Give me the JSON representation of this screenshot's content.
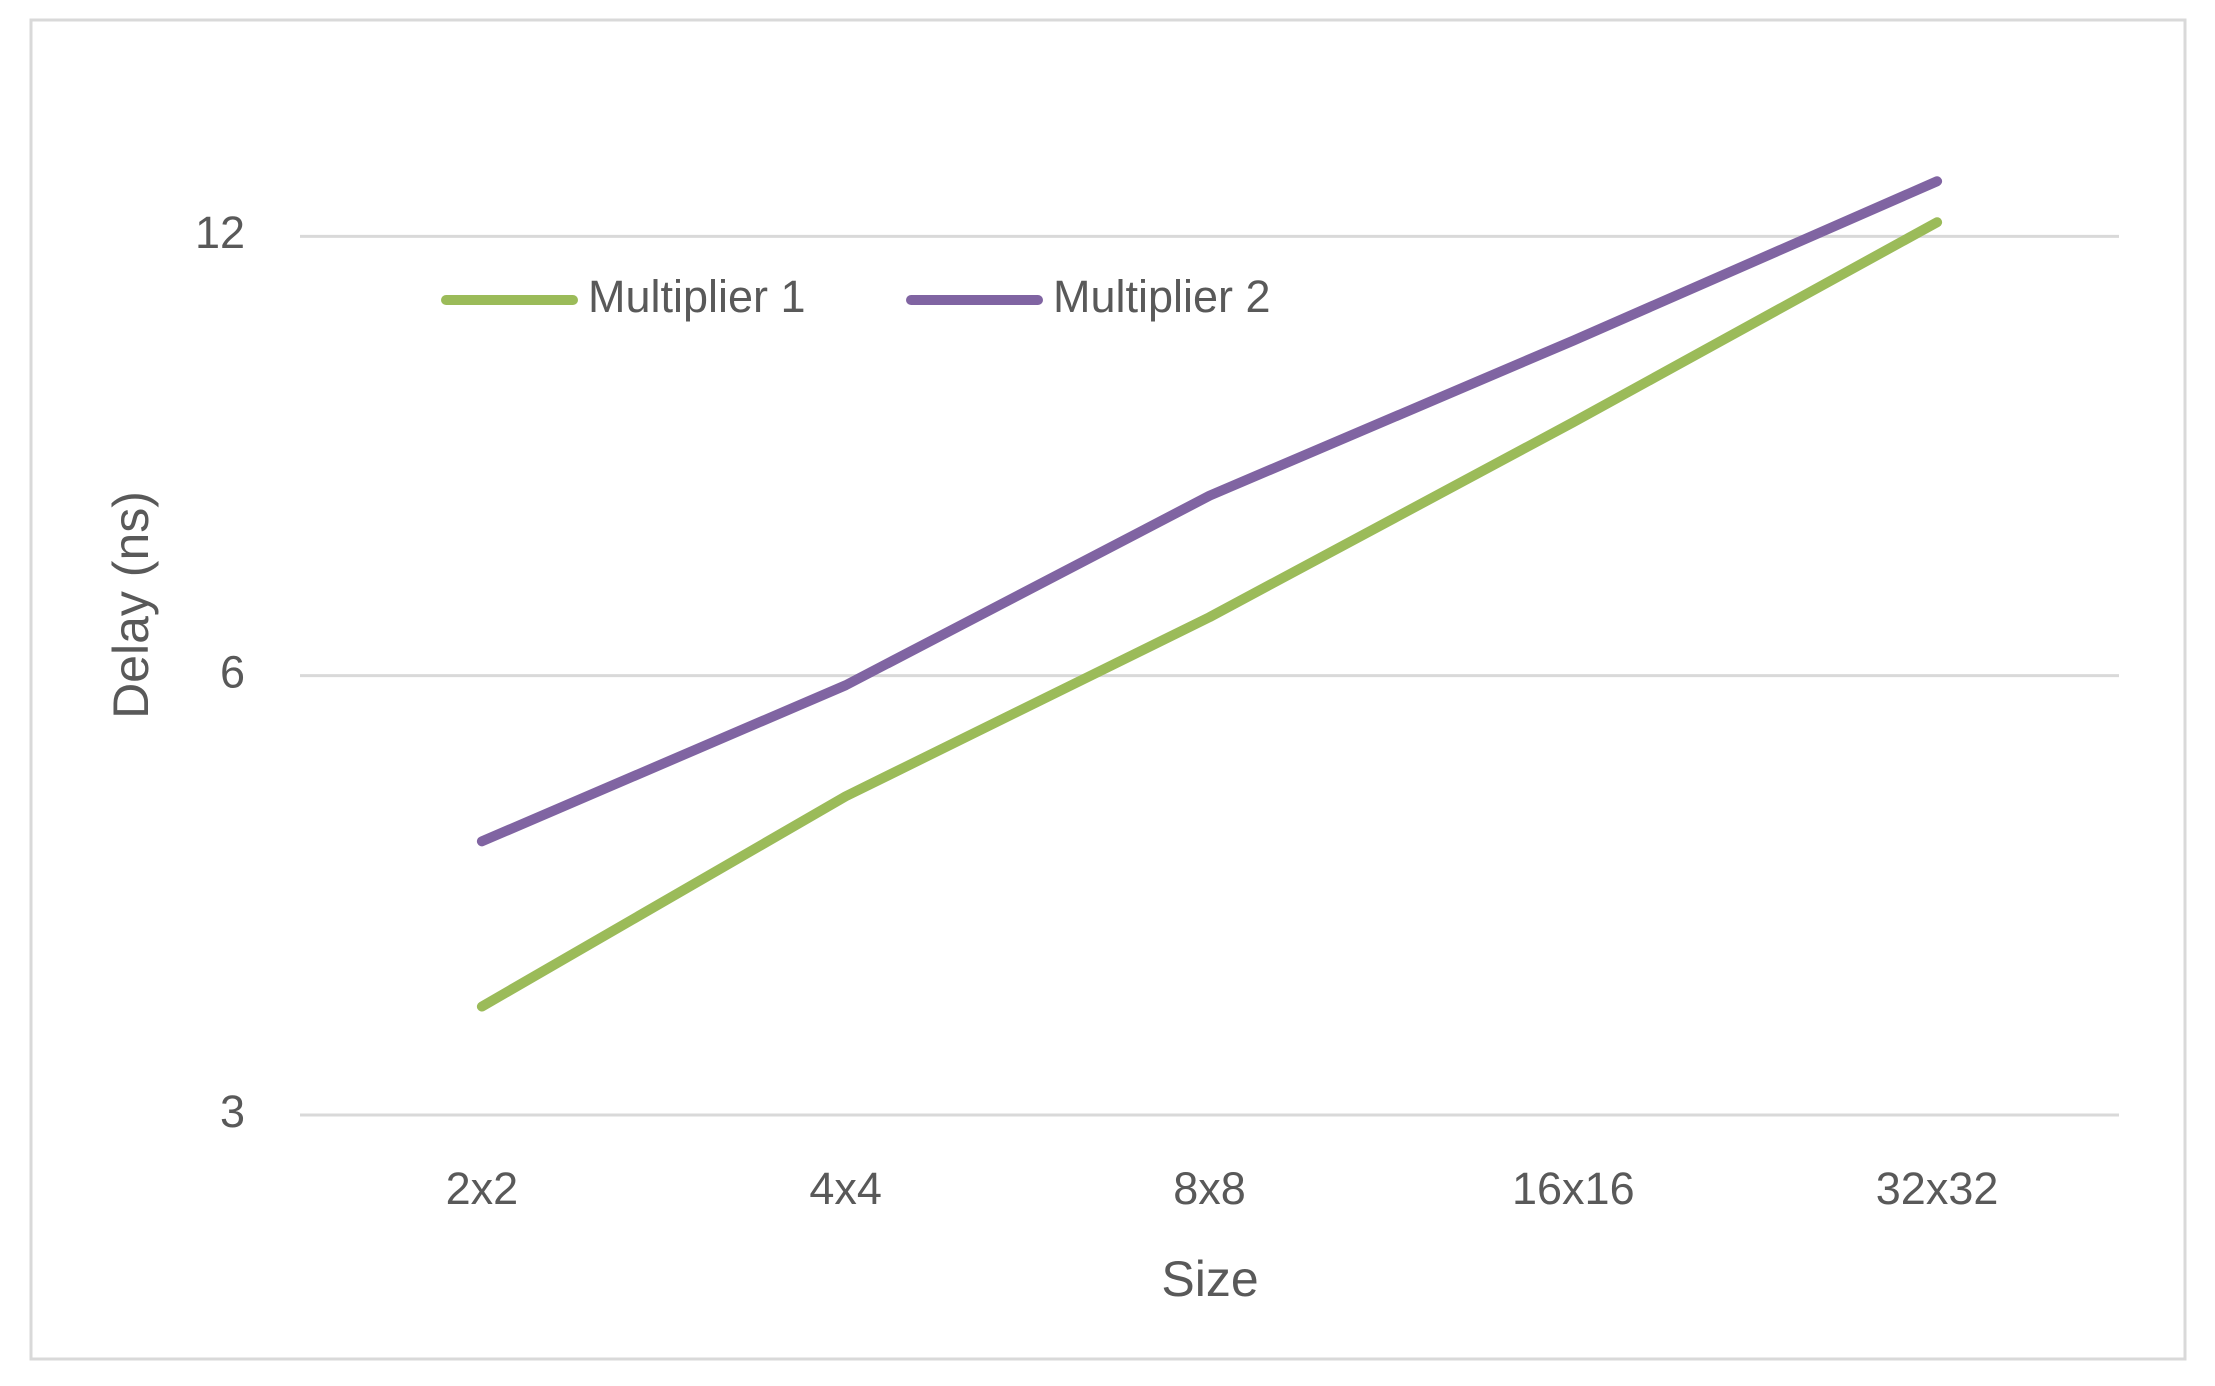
{
  "chart_data": {
    "type": "line",
    "x_label": "Size",
    "y_label": "Delay (ns)",
    "categories": [
      "2x2",
      "4x4",
      "8x8",
      "16x16",
      "32x32"
    ],
    "series": [
      {
        "name": "Multiplier 1",
        "color": "#9bbb59",
        "values": [
          3.56,
          4.96,
          6.58,
          8.95,
          12.27
        ]
      },
      {
        "name": "Multiplier 2",
        "color": "#8064a2",
        "values": [
          4.62,
          5.91,
          7.97,
          10.18,
          13.09
        ]
      }
    ],
    "ylim": [
      3,
      16
    ],
    "yticks": [
      3,
      6,
      12
    ],
    "log_scale": true,
    "grid": true,
    "legend": "top-left"
  }
}
